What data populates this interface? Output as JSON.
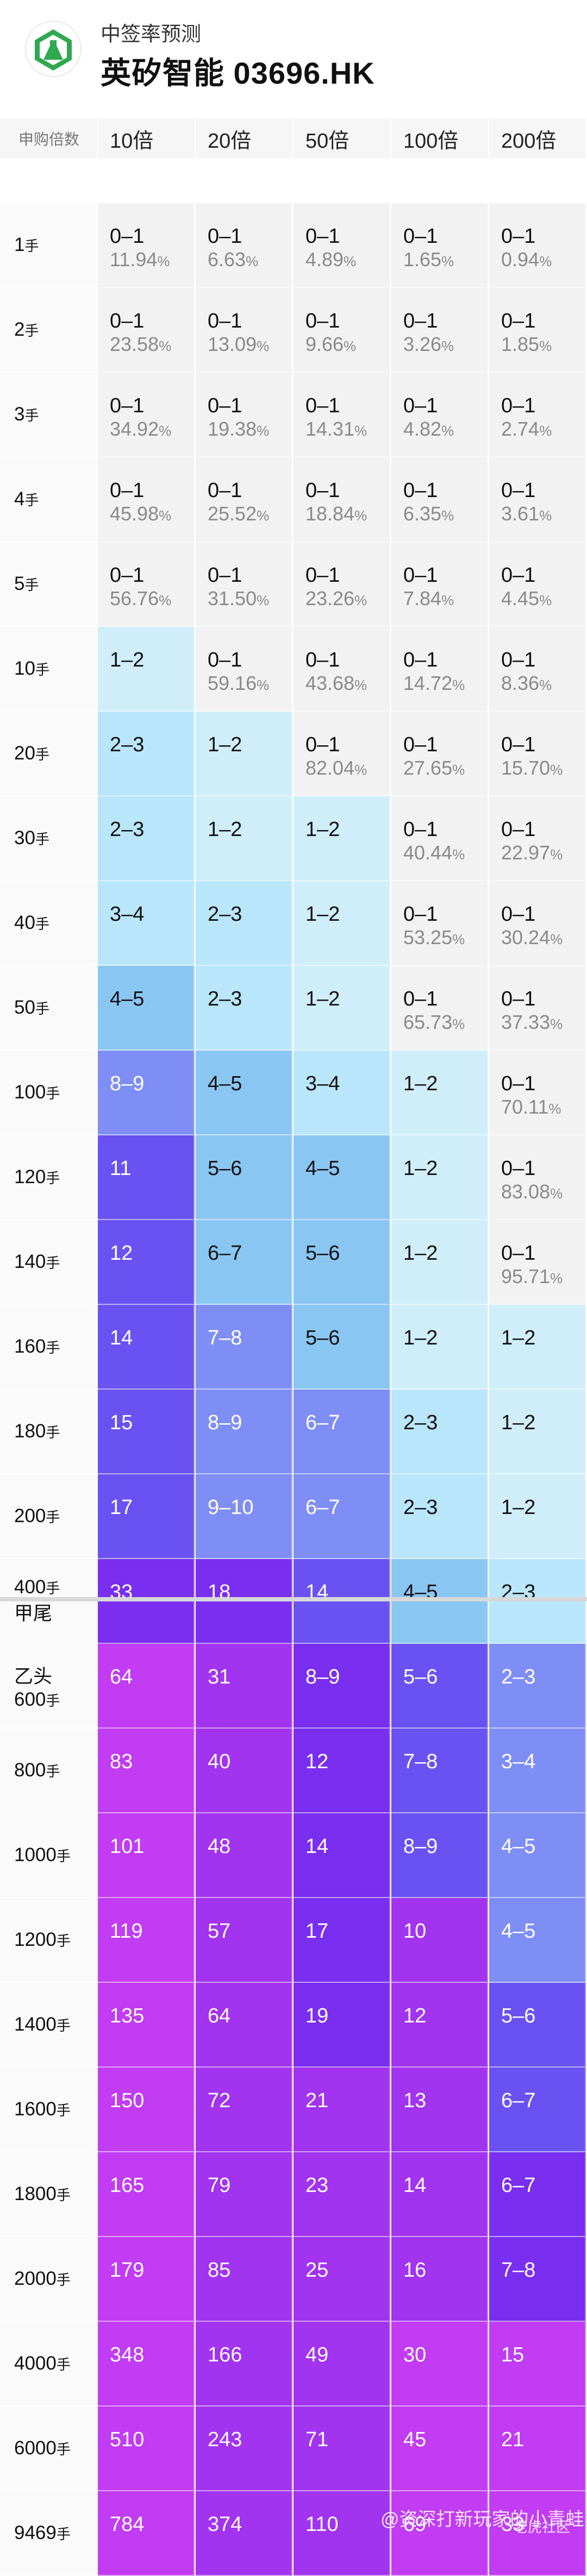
{
  "header": {
    "subtitle": "中签率预测",
    "title": "英矽智能 03696.HK",
    "logo_icon": "flask-logo-icon"
  },
  "table": {
    "corner_label": "申购倍数",
    "columns": [
      "10倍",
      "20倍",
      "50倍",
      "100倍",
      "200倍"
    ],
    "rows": [
      {
        "label": "1",
        "unit": "手",
        "cells": [
          {
            "range": "0–1",
            "pct": "11.94",
            "lvl": 0
          },
          {
            "range": "0–1",
            "pct": "6.63",
            "lvl": 0
          },
          {
            "range": "0–1",
            "pct": "4.89",
            "lvl": 0
          },
          {
            "range": "0–1",
            "pct": "1.65",
            "lvl": 0
          },
          {
            "range": "0–1",
            "pct": "0.94",
            "lvl": 0
          }
        ]
      },
      {
        "label": "2",
        "unit": "手",
        "cells": [
          {
            "range": "0–1",
            "pct": "23.58",
            "lvl": 0
          },
          {
            "range": "0–1",
            "pct": "13.09",
            "lvl": 0
          },
          {
            "range": "0–1",
            "pct": "9.66",
            "lvl": 0
          },
          {
            "range": "0–1",
            "pct": "3.26",
            "lvl": 0
          },
          {
            "range": "0–1",
            "pct": "1.85",
            "lvl": 0
          }
        ]
      },
      {
        "label": "3",
        "unit": "手",
        "cells": [
          {
            "range": "0–1",
            "pct": "34.92",
            "lvl": 0
          },
          {
            "range": "0–1",
            "pct": "19.38",
            "lvl": 0
          },
          {
            "range": "0–1",
            "pct": "14.31",
            "lvl": 0
          },
          {
            "range": "0–1",
            "pct": "4.82",
            "lvl": 0
          },
          {
            "range": "0–1",
            "pct": "2.74",
            "lvl": 0
          }
        ]
      },
      {
        "label": "4",
        "unit": "手",
        "cells": [
          {
            "range": "0–1",
            "pct": "45.98",
            "lvl": 0
          },
          {
            "range": "0–1",
            "pct": "25.52",
            "lvl": 0
          },
          {
            "range": "0–1",
            "pct": "18.84",
            "lvl": 0
          },
          {
            "range": "0–1",
            "pct": "6.35",
            "lvl": 0
          },
          {
            "range": "0–1",
            "pct": "3.61",
            "lvl": 0
          }
        ]
      },
      {
        "label": "5",
        "unit": "手",
        "cells": [
          {
            "range": "0–1",
            "pct": "56.76",
            "lvl": 0
          },
          {
            "range": "0–1",
            "pct": "31.50",
            "lvl": 0
          },
          {
            "range": "0–1",
            "pct": "23.26",
            "lvl": 0
          },
          {
            "range": "0–1",
            "pct": "7.84",
            "lvl": 0
          },
          {
            "range": "0–1",
            "pct": "4.45",
            "lvl": 0
          }
        ]
      },
      {
        "label": "10",
        "unit": "手",
        "cells": [
          {
            "range": "1–2",
            "pct": "",
            "lvl": 1
          },
          {
            "range": "0–1",
            "pct": "59.16",
            "lvl": 0
          },
          {
            "range": "0–1",
            "pct": "43.68",
            "lvl": 0
          },
          {
            "range": "0–1",
            "pct": "14.72",
            "lvl": 0
          },
          {
            "range": "0–1",
            "pct": "8.36",
            "lvl": 0
          }
        ]
      },
      {
        "label": "20",
        "unit": "手",
        "cells": [
          {
            "range": "2–3",
            "pct": "",
            "lvl": 2
          },
          {
            "range": "1–2",
            "pct": "",
            "lvl": 1
          },
          {
            "range": "0–1",
            "pct": "82.04",
            "lvl": 0
          },
          {
            "range": "0–1",
            "pct": "27.65",
            "lvl": 0
          },
          {
            "range": "0–1",
            "pct": "15.70",
            "lvl": 0
          }
        ]
      },
      {
        "label": "30",
        "unit": "手",
        "cells": [
          {
            "range": "2–3",
            "pct": "",
            "lvl": 2
          },
          {
            "range": "1–2",
            "pct": "",
            "lvl": 1
          },
          {
            "range": "1–2",
            "pct": "",
            "lvl": 1
          },
          {
            "range": "0–1",
            "pct": "40.44",
            "lvl": 0
          },
          {
            "range": "0–1",
            "pct": "22.97",
            "lvl": 0
          }
        ]
      },
      {
        "label": "40",
        "unit": "手",
        "cells": [
          {
            "range": "3–4",
            "pct": "",
            "lvl": 2
          },
          {
            "range": "2–3",
            "pct": "",
            "lvl": 2
          },
          {
            "range": "1–2",
            "pct": "",
            "lvl": 1
          },
          {
            "range": "0–1",
            "pct": "53.25",
            "lvl": 0
          },
          {
            "range": "0–1",
            "pct": "30.24",
            "lvl": 0
          }
        ]
      },
      {
        "label": "50",
        "unit": "手",
        "cells": [
          {
            "range": "4–5",
            "pct": "",
            "lvl": 3
          },
          {
            "range": "2–3",
            "pct": "",
            "lvl": 2
          },
          {
            "range": "1–2",
            "pct": "",
            "lvl": 1
          },
          {
            "range": "0–1",
            "pct": "65.73",
            "lvl": 0
          },
          {
            "range": "0–1",
            "pct": "37.33",
            "lvl": 0
          }
        ]
      },
      {
        "label": "100",
        "unit": "手",
        "cells": [
          {
            "range": "8–9",
            "pct": "",
            "lvl": 4
          },
          {
            "range": "4–5",
            "pct": "",
            "lvl": 3
          },
          {
            "range": "3–4",
            "pct": "",
            "lvl": 2
          },
          {
            "range": "1–2",
            "pct": "",
            "lvl": 1
          },
          {
            "range": "0–1",
            "pct": "70.11",
            "lvl": 0
          }
        ]
      },
      {
        "label": "120",
        "unit": "手",
        "cells": [
          {
            "range": "11",
            "pct": "",
            "lvl": 5
          },
          {
            "range": "5–6",
            "pct": "",
            "lvl": 3
          },
          {
            "range": "4–5",
            "pct": "",
            "lvl": 3
          },
          {
            "range": "1–2",
            "pct": "",
            "lvl": 1
          },
          {
            "range": "0–1",
            "pct": "83.08",
            "lvl": 0
          }
        ]
      },
      {
        "label": "140",
        "unit": "手",
        "cells": [
          {
            "range": "12",
            "pct": "",
            "lvl": 5
          },
          {
            "range": "6–7",
            "pct": "",
            "lvl": 3
          },
          {
            "range": "5–6",
            "pct": "",
            "lvl": 3
          },
          {
            "range": "1–2",
            "pct": "",
            "lvl": 1
          },
          {
            "range": "0–1",
            "pct": "95.71",
            "lvl": 0
          }
        ]
      },
      {
        "label": "160",
        "unit": "手",
        "cells": [
          {
            "range": "14",
            "pct": "",
            "lvl": 5
          },
          {
            "range": "7–8",
            "pct": "",
            "lvl": 4
          },
          {
            "range": "5–6",
            "pct": "",
            "lvl": 3
          },
          {
            "range": "1–2",
            "pct": "",
            "lvl": 1
          },
          {
            "range": "1–2",
            "pct": "",
            "lvl": 1
          }
        ]
      },
      {
        "label": "180",
        "unit": "手",
        "cells": [
          {
            "range": "15",
            "pct": "",
            "lvl": 5
          },
          {
            "range": "8–9",
            "pct": "",
            "lvl": 4
          },
          {
            "range": "6–7",
            "pct": "",
            "lvl": 4
          },
          {
            "range": "2–3",
            "pct": "",
            "lvl": 2
          },
          {
            "range": "1–2",
            "pct": "",
            "lvl": 1
          }
        ]
      },
      {
        "label": "200",
        "unit": "手",
        "cells": [
          {
            "range": "17",
            "pct": "",
            "lvl": 5
          },
          {
            "range": "9–10",
            "pct": "",
            "lvl": 4
          },
          {
            "range": "6–7",
            "pct": "",
            "lvl": 4
          },
          {
            "range": "2–3",
            "pct": "",
            "lvl": 2
          },
          {
            "range": "1–2",
            "pct": "",
            "lvl": 1
          }
        ]
      },
      {
        "label": "400",
        "unit": "手",
        "note": "甲尾",
        "cells": [
          {
            "range": "33",
            "pct": "",
            "lvl": 6
          },
          {
            "range": "18",
            "pct": "",
            "lvl": 6
          },
          {
            "range": "14",
            "pct": "",
            "lvl": 5
          },
          {
            "range": "4–5",
            "pct": "",
            "lvl": 3
          },
          {
            "range": "2–3",
            "pct": "",
            "lvl": 2
          }
        ]
      },
      {
        "label": "600",
        "unit": "手",
        "prefix": "乙头",
        "cells": [
          {
            "range": "64",
            "pct": "",
            "lvl": 8
          },
          {
            "range": "31",
            "pct": "",
            "lvl": 7
          },
          {
            "range": "8–9",
            "pct": "",
            "lvl": 6
          },
          {
            "range": "5–6",
            "pct": "",
            "lvl": 5
          },
          {
            "range": "2–3",
            "pct": "",
            "lvl": 4
          }
        ]
      },
      {
        "label": "800",
        "unit": "手",
        "cells": [
          {
            "range": "83",
            "pct": "",
            "lvl": 8
          },
          {
            "range": "40",
            "pct": "",
            "lvl": 7
          },
          {
            "range": "12",
            "pct": "",
            "lvl": 6
          },
          {
            "range": "7–8",
            "pct": "",
            "lvl": 5
          },
          {
            "range": "3–4",
            "pct": "",
            "lvl": 4
          }
        ]
      },
      {
        "label": "1000",
        "unit": "手",
        "cells": [
          {
            "range": "101",
            "pct": "",
            "lvl": 8
          },
          {
            "range": "48",
            "pct": "",
            "lvl": 7
          },
          {
            "range": "14",
            "pct": "",
            "lvl": 6
          },
          {
            "range": "8–9",
            "pct": "",
            "lvl": 5
          },
          {
            "range": "4–5",
            "pct": "",
            "lvl": 4
          }
        ]
      },
      {
        "label": "1200",
        "unit": "手",
        "cells": [
          {
            "range": "119",
            "pct": "",
            "lvl": 8
          },
          {
            "range": "57",
            "pct": "",
            "lvl": 7
          },
          {
            "range": "17",
            "pct": "",
            "lvl": 6
          },
          {
            "range": "10",
            "pct": "",
            "lvl": 7
          },
          {
            "range": "4–5",
            "pct": "",
            "lvl": 4
          }
        ]
      },
      {
        "label": "1400",
        "unit": "手",
        "cells": [
          {
            "range": "135",
            "pct": "",
            "lvl": 8
          },
          {
            "range": "64",
            "pct": "",
            "lvl": 7
          },
          {
            "range": "19",
            "pct": "",
            "lvl": 6
          },
          {
            "range": "12",
            "pct": "",
            "lvl": 7
          },
          {
            "range": "5–6",
            "pct": "",
            "lvl": 5
          }
        ]
      },
      {
        "label": "1600",
        "unit": "手",
        "cells": [
          {
            "range": "150",
            "pct": "",
            "lvl": 8
          },
          {
            "range": "72",
            "pct": "",
            "lvl": 7
          },
          {
            "range": "21",
            "pct": "",
            "lvl": 7
          },
          {
            "range": "13",
            "pct": "",
            "lvl": 7
          },
          {
            "range": "6–7",
            "pct": "",
            "lvl": 5
          }
        ]
      },
      {
        "label": "1800",
        "unit": "手",
        "cells": [
          {
            "range": "165",
            "pct": "",
            "lvl": 8
          },
          {
            "range": "79",
            "pct": "",
            "lvl": 7
          },
          {
            "range": "23",
            "pct": "",
            "lvl": 7
          },
          {
            "range": "14",
            "pct": "",
            "lvl": 7
          },
          {
            "range": "6–7",
            "pct": "",
            "lvl": 6
          }
        ]
      },
      {
        "label": "2000",
        "unit": "手",
        "cells": [
          {
            "range": "179",
            "pct": "",
            "lvl": 8
          },
          {
            "range": "85",
            "pct": "",
            "lvl": 7
          },
          {
            "range": "25",
            "pct": "",
            "lvl": 7
          },
          {
            "range": "16",
            "pct": "",
            "lvl": 7
          },
          {
            "range": "7–8",
            "pct": "",
            "lvl": 6
          }
        ]
      },
      {
        "label": "4000",
        "unit": "手",
        "cells": [
          {
            "range": "348",
            "pct": "",
            "lvl": 8
          },
          {
            "range": "166",
            "pct": "",
            "lvl": 7
          },
          {
            "range": "49",
            "pct": "",
            "lvl": 7
          },
          {
            "range": "30",
            "pct": "",
            "lvl": 8
          },
          {
            "range": "15",
            "pct": "",
            "lvl": 8
          }
        ]
      },
      {
        "label": "6000",
        "unit": "手",
        "cells": [
          {
            "range": "510",
            "pct": "",
            "lvl": 8
          },
          {
            "range": "243",
            "pct": "",
            "lvl": 7
          },
          {
            "range": "71",
            "pct": "",
            "lvl": 7
          },
          {
            "range": "45",
            "pct": "",
            "lvl": 8
          },
          {
            "range": "21",
            "pct": "",
            "lvl": 8
          }
        ]
      },
      {
        "label": "9469",
        "unit": "手",
        "cells": [
          {
            "range": "784",
            "pct": "",
            "lvl": 8
          },
          {
            "range": "374",
            "pct": "",
            "lvl": 7
          },
          {
            "range": "110",
            "pct": "",
            "lvl": 7
          },
          {
            "range": "69",
            "pct": "",
            "lvl": 8
          },
          {
            "range": "33",
            "pct": "",
            "lvl": 8
          }
        ]
      }
    ]
  },
  "watermark": {
    "left_text": "@资深打新玩家的小青蛙",
    "right_text": "老虎社区"
  }
}
